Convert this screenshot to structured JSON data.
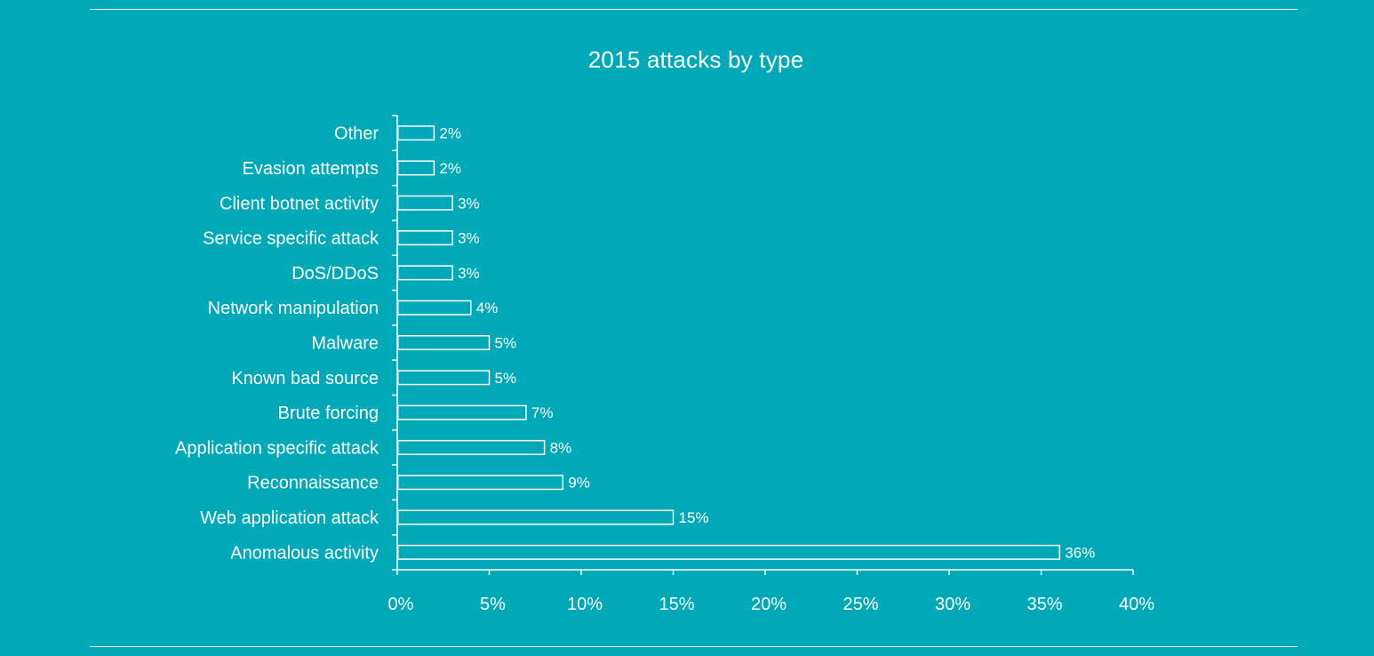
{
  "chart_data": {
    "type": "bar",
    "orientation": "horizontal",
    "title": "2015 attacks by type",
    "xlabel": "",
    "ylabel": "",
    "categories": [
      "Other",
      "Evasion attempts",
      "Client botnet activity",
      "Service specific attack",
      "DoS/DDoS",
      "Network manipulation",
      "Malware",
      "Known bad source",
      "Brute forcing",
      "Application specific attack",
      "Reconnaissance",
      "Web application attack",
      "Anomalous activity"
    ],
    "values": [
      2,
      2,
      3,
      3,
      3,
      4,
      5,
      5,
      7,
      8,
      9,
      15,
      36
    ],
    "value_labels": [
      "2%",
      "2%",
      "3%",
      "3%",
      "3%",
      "4%",
      "5%",
      "5%",
      "7%",
      "8%",
      "9%",
      "15%",
      "36%"
    ],
    "xlim": [
      0,
      40
    ],
    "xticks": [
      0,
      5,
      10,
      15,
      20,
      25,
      30,
      35,
      40
    ],
    "xtick_labels": [
      "0%",
      "5%",
      "10%",
      "15%",
      "20%",
      "25%",
      "30%",
      "35%",
      "40%"
    ],
    "grid": false,
    "legend": "none",
    "colors": {
      "background": "#00a9b8",
      "bar_fill": "#00a9b8",
      "bar_stroke": "#ffffff",
      "text": "#ffffff"
    }
  }
}
